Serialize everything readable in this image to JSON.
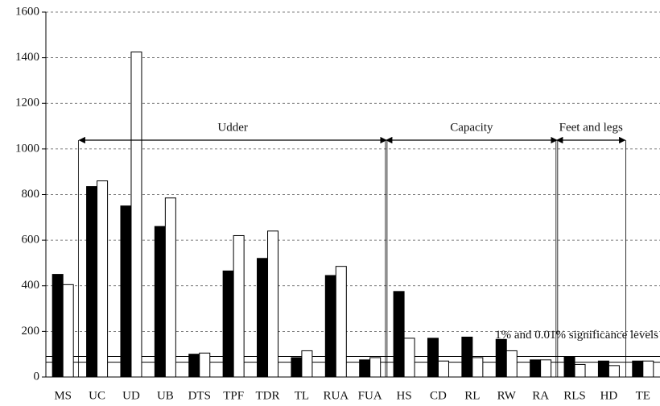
{
  "chart_data": {
    "type": "bar",
    "categories": [
      "MS",
      "UC",
      "UD",
      "UB",
      "DTS",
      "TPF",
      "TDR",
      "TL",
      "RUA",
      "FUA",
      "HS",
      "CD",
      "RL",
      "RW",
      "RA",
      "RLS",
      "HD",
      "TE"
    ],
    "series": [
      {
        "color": "#000000",
        "values": [
          450,
          835,
          750,
          660,
          100,
          465,
          520,
          85,
          445,
          75,
          375,
          170,
          175,
          165,
          75,
          90,
          70,
          70
        ]
      },
      {
        "color": "#ffffff",
        "values": [
          405,
          860,
          1425,
          785,
          105,
          620,
          640,
          115,
          485,
          85,
          170,
          70,
          85,
          115,
          75,
          55,
          50,
          70
        ]
      }
    ],
    "ylim": [
      0,
      1600
    ],
    "yticks": [
      0,
      200,
      400,
      600,
      800,
      1000,
      1200,
      1400,
      1600
    ],
    "grid": true,
    "groups": [
      {
        "label": "Udder",
        "first": "UC",
        "last": "FUA"
      },
      {
        "label": "Capacity",
        "first": "HS",
        "last": "RA"
      },
      {
        "label": "Feet and legs",
        "first": "RLS",
        "last": "HD"
      }
    ],
    "reference_lines": [
      65,
      90
    ],
    "reference_label": "1% and 0.01% significance levels"
  }
}
